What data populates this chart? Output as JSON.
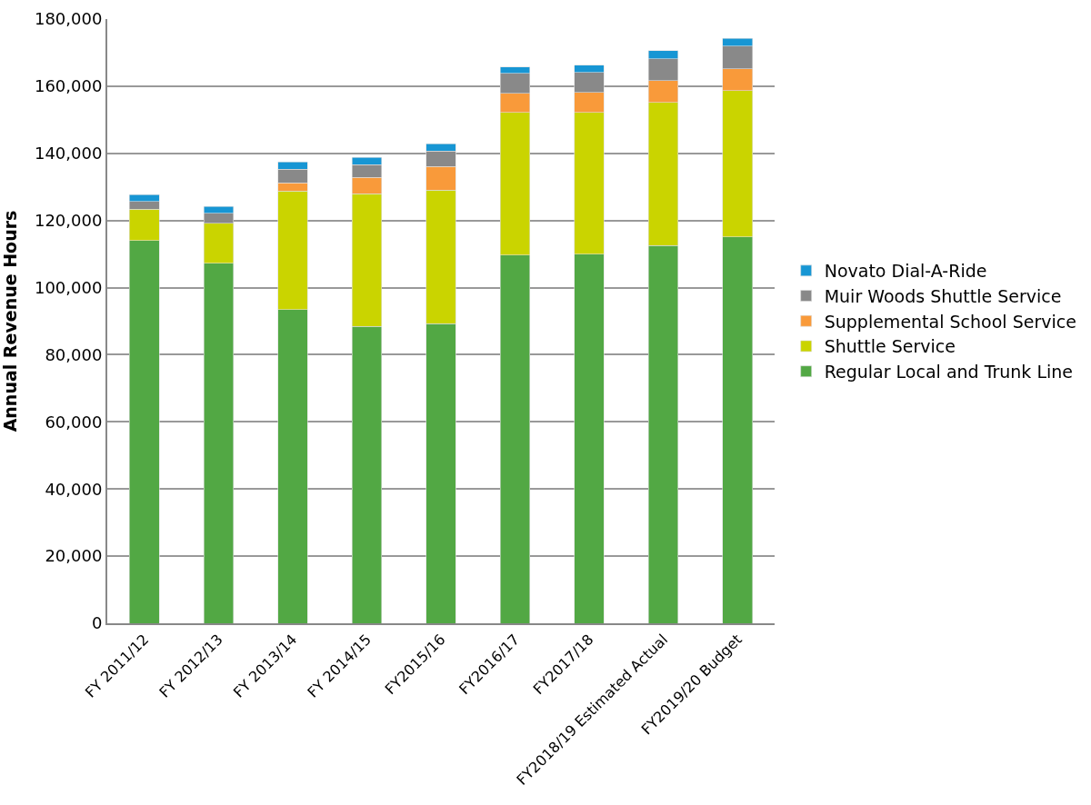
{
  "chart_data": {
    "type": "bar",
    "stacked": true,
    "ylabel": "Annual Revenue Hours",
    "categories": [
      "FY 2011/12",
      "FY 2012/13",
      "FY 2013/14",
      "FY 2014/15",
      "FY2015/16",
      "FY2016/17",
      "FY2017/18",
      "FY2018/19 Estimated Actual",
      "FY2019/20 Budget"
    ],
    "series": [
      {
        "name": "Regular Local and Trunk Line",
        "color": "#52a844",
        "values": [
          114000,
          107200,
          93500,
          88400,
          89200,
          109700,
          109900,
          112600,
          115100
        ]
      },
      {
        "name": "Shuttle Service",
        "color": "#cad400",
        "values": [
          9400,
          11900,
          35300,
          39600,
          39900,
          42500,
          42300,
          42600,
          43600
        ]
      },
      {
        "name": "Supplemental School Service",
        "color": "#f99a3a",
        "values": [
          null,
          null,
          2400,
          4800,
          7000,
          5700,
          6000,
          6500,
          6500
        ]
      },
      {
        "name": "Muir Woods Shuttle Service",
        "color": "#898989",
        "values": [
          2200,
          3000,
          4100,
          3800,
          4600,
          5900,
          5900,
          6400,
          6700
        ]
      },
      {
        "name": "Novato Dial-A-Ride",
        "color": "#1796d4",
        "values": [
          2100,
          2100,
          2100,
          2200,
          2100,
          1900,
          2200,
          2500,
          2400
        ]
      }
    ],
    "ylim": [
      0,
      180000
    ],
    "yticks": [
      {
        "value": 0,
        "label": "0"
      },
      {
        "value": 20000,
        "label": "20,000"
      },
      {
        "value": 40000,
        "label": "40,000"
      },
      {
        "value": 60000,
        "label": "60,000"
      },
      {
        "value": 80000,
        "label": "80,000"
      },
      {
        "value": 100000,
        "label": "100,000"
      },
      {
        "value": 120000,
        "label": "120,000"
      },
      {
        "value": 140000,
        "label": "140,000"
      },
      {
        "value": 160000,
        "label": "160,000"
      },
      {
        "value": 180000,
        "label": "180,000"
      }
    ],
    "grid": "y",
    "legend": "right"
  }
}
